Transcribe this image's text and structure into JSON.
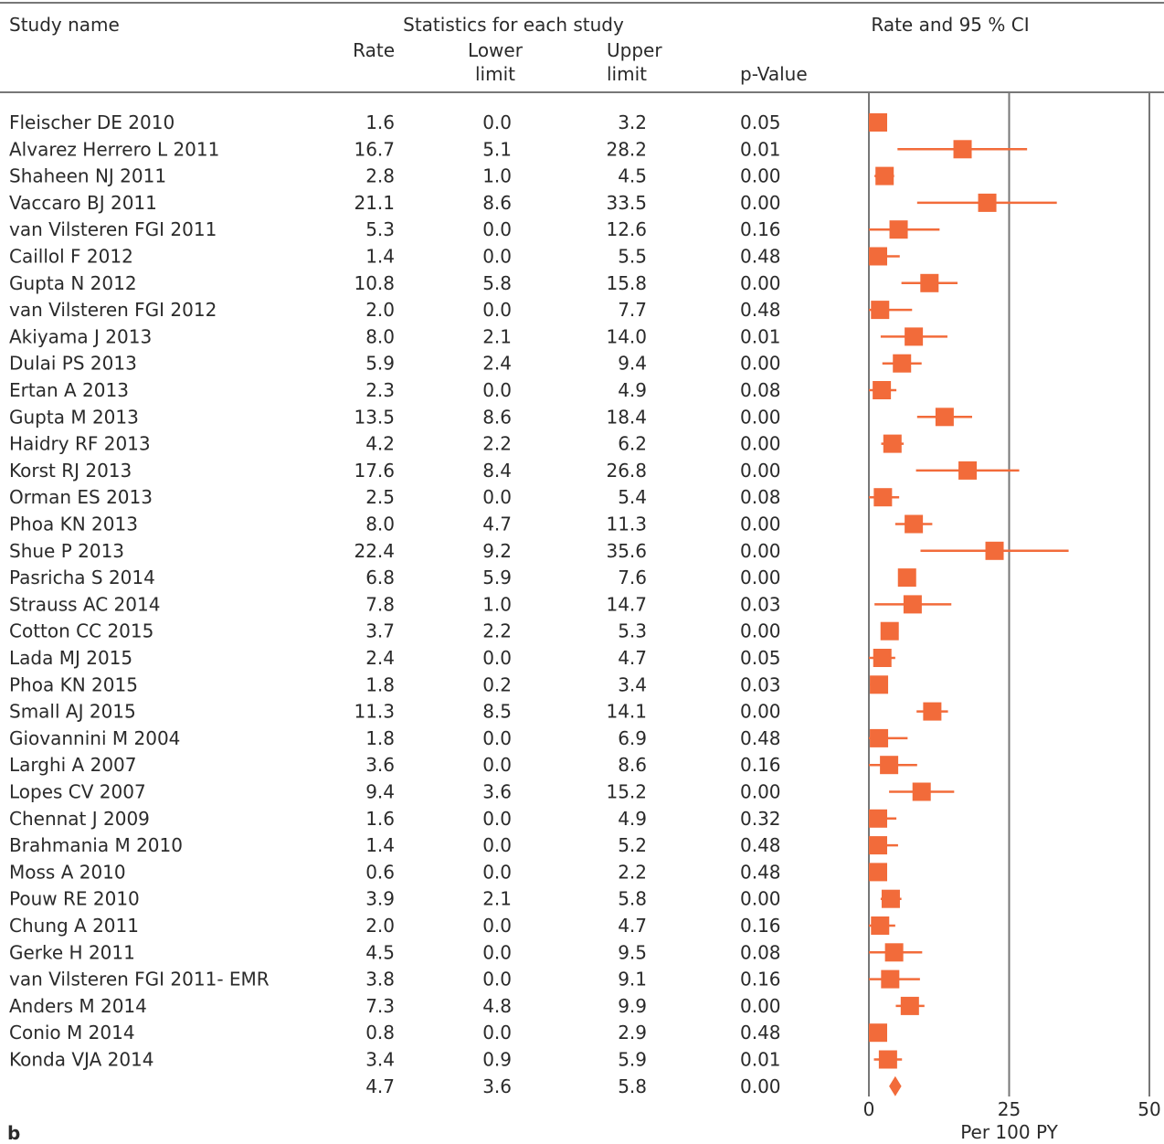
{
  "panel_label": "b",
  "chart_data": {
    "type": "forest",
    "group_header": "Statistics for each study",
    "plot_header": "Rate and 95 % CI",
    "columns": {
      "study": "Study name",
      "rate": "Rate",
      "lower": [
        "Lower",
        "limit"
      ],
      "upper": [
        "Upper",
        "limit"
      ],
      "p": "p-Value"
    },
    "xlim": [
      0,
      50
    ],
    "xticks": [
      "0",
      "25",
      "50"
    ],
    "xlabel": "Per 100 PY",
    "marker_color": "#f26b3a",
    "studies": [
      {
        "name": "Fleischer DE 2010",
        "rate": "1.6",
        "lower": "0.0",
        "upper": "3.2",
        "p": "0.05"
      },
      {
        "name": "Alvarez Herrero L 2011",
        "rate": "16.7",
        "lower": "5.1",
        "upper": "28.2",
        "p": "0.01"
      },
      {
        "name": "Shaheen NJ 2011",
        "rate": "2.8",
        "lower": "1.0",
        "upper": "4.5",
        "p": "0.00"
      },
      {
        "name": "Vaccaro BJ 2011",
        "rate": "21.1",
        "lower": "8.6",
        "upper": "33.5",
        "p": "0.00"
      },
      {
        "name": "van Vilsteren FGI 2011",
        "rate": "5.3",
        "lower": "0.0",
        "upper": "12.6",
        "p": "0.16"
      },
      {
        "name": "Caillol F 2012",
        "rate": "1.4",
        "lower": "0.0",
        "upper": "5.5",
        "p": "0.48"
      },
      {
        "name": "Gupta N 2012",
        "rate": "10.8",
        "lower": "5.8",
        "upper": "15.8",
        "p": "0.00"
      },
      {
        "name": "van Vilsteren FGI 2012",
        "rate": "2.0",
        "lower": "0.0",
        "upper": "7.7",
        "p": "0.48"
      },
      {
        "name": "Akiyama J 2013",
        "rate": "8.0",
        "lower": "2.1",
        "upper": "14.0",
        "p": "0.01"
      },
      {
        "name": "Dulai PS 2013",
        "rate": "5.9",
        "lower": "2.4",
        "upper": "9.4",
        "p": "0.00"
      },
      {
        "name": "Ertan A 2013",
        "rate": "2.3",
        "lower": "0.0",
        "upper": "4.9",
        "p": "0.08"
      },
      {
        "name": "Gupta M 2013",
        "rate": "13.5",
        "lower": "8.6",
        "upper": "18.4",
        "p": "0.00"
      },
      {
        "name": "Haidry RF 2013",
        "rate": "4.2",
        "lower": "2.2",
        "upper": "6.2",
        "p": "0.00"
      },
      {
        "name": "Korst RJ 2013",
        "rate": "17.6",
        "lower": "8.4",
        "upper": "26.8",
        "p": "0.00"
      },
      {
        "name": "Orman ES 2013",
        "rate": "2.5",
        "lower": "0.0",
        "upper": "5.4",
        "p": "0.08"
      },
      {
        "name": "Phoa KN 2013",
        "rate": "8.0",
        "lower": "4.7",
        "upper": "11.3",
        "p": "0.00"
      },
      {
        "name": "Shue P 2013",
        "rate": "22.4",
        "lower": "9.2",
        "upper": "35.6",
        "p": "0.00"
      },
      {
        "name": "Pasricha S 2014",
        "rate": "6.8",
        "lower": "5.9",
        "upper": "7.6",
        "p": "0.00"
      },
      {
        "name": "Strauss AC 2014",
        "rate": "7.8",
        "lower": "1.0",
        "upper": "14.7",
        "p": "0.03"
      },
      {
        "name": "Cotton CC 2015",
        "rate": "3.7",
        "lower": "2.2",
        "upper": "5.3",
        "p": "0.00"
      },
      {
        "name": "Lada MJ 2015",
        "rate": "2.4",
        "lower": "0.0",
        "upper": "4.7",
        "p": "0.05"
      },
      {
        "name": "Phoa KN 2015",
        "rate": "1.8",
        "lower": "0.2",
        "upper": "3.4",
        "p": "0.03"
      },
      {
        "name": "Small AJ 2015",
        "rate": "11.3",
        "lower": "8.5",
        "upper": "14.1",
        "p": "0.00"
      },
      {
        "name": "Giovannini M 2004",
        "rate": "1.8",
        "lower": "0.0",
        "upper": "6.9",
        "p": "0.48"
      },
      {
        "name": "Larghi A 2007",
        "rate": "3.6",
        "lower": "0.0",
        "upper": "8.6",
        "p": "0.16"
      },
      {
        "name": "Lopes CV 2007",
        "rate": "9.4",
        "lower": "3.6",
        "upper": "15.2",
        "p": "0.00"
      },
      {
        "name": "Chennat J 2009",
        "rate": "1.6",
        "lower": "0.0",
        "upper": "4.9",
        "p": "0.32"
      },
      {
        "name": "Brahmania M 2010",
        "rate": "1.4",
        "lower": "0.0",
        "upper": "5.2",
        "p": "0.48"
      },
      {
        "name": "Moss A 2010",
        "rate": "0.6",
        "lower": "0.0",
        "upper": "2.2",
        "p": "0.48"
      },
      {
        "name": "Pouw RE 2010",
        "rate": "3.9",
        "lower": "2.1",
        "upper": "5.8",
        "p": "0.00"
      },
      {
        "name": "Chung A 2011",
        "rate": "2.0",
        "lower": "0.0",
        "upper": "4.7",
        "p": "0.16"
      },
      {
        "name": "Gerke H 2011",
        "rate": "4.5",
        "lower": "0.0",
        "upper": "9.5",
        "p": "0.08"
      },
      {
        "name": "van Vilsteren FGI 2011- EMR",
        "rate": "3.8",
        "lower": "0.0",
        "upper": "9.1",
        "p": "0.16"
      },
      {
        "name": "Anders M 2014",
        "rate": "7.3",
        "lower": "4.8",
        "upper": "9.9",
        "p": "0.00"
      },
      {
        "name": "Conio M 2014",
        "rate": "0.8",
        "lower": "0.0",
        "upper": "2.9",
        "p": "0.48"
      },
      {
        "name": "Konda VJA 2014",
        "rate": "3.4",
        "lower": "0.9",
        "upper": "5.9",
        "p": "0.01"
      }
    ],
    "pooled": {
      "rate": "4.7",
      "lower": "3.6",
      "upper": "5.8",
      "p": "0.00"
    }
  }
}
